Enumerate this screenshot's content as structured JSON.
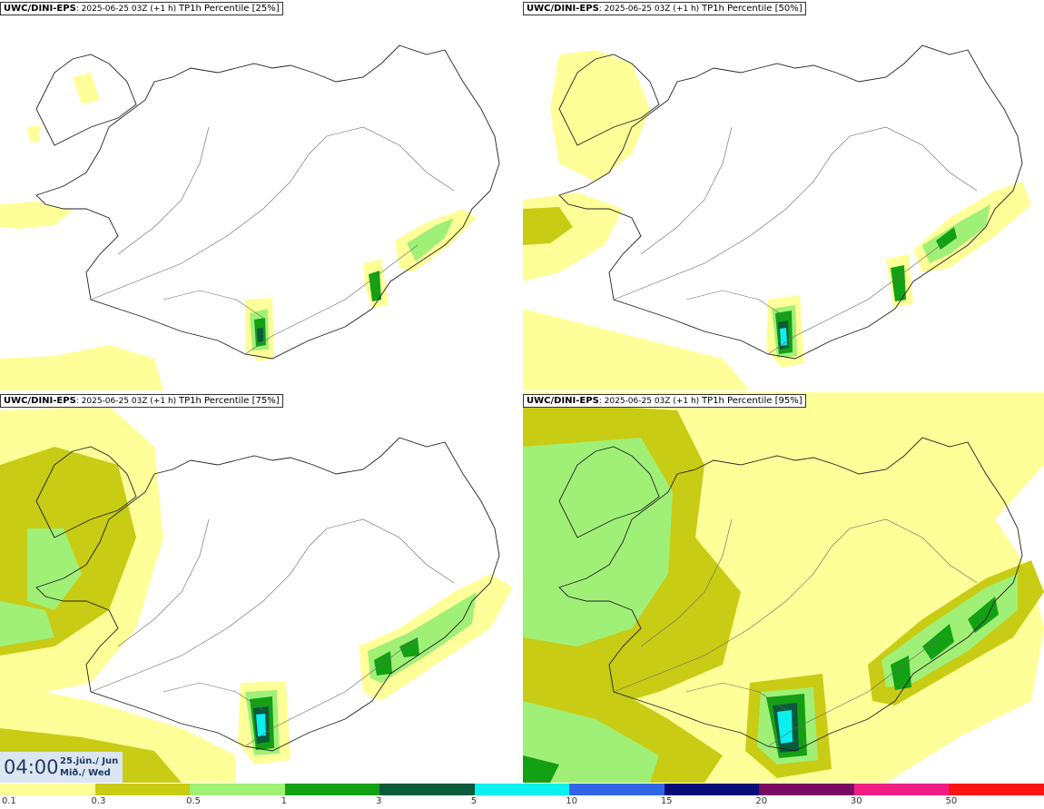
{
  "panels": [
    {
      "model": "UWC/DINI-EPS",
      "run": ": 2025-06-25 03Z (+1 h)",
      "param": "TP1h Percentile [25%]"
    },
    {
      "model": "UWC/DINI-EPS",
      "run": ": 2025-06-25 03Z (+1 h)",
      "param": "TP1h Percentile [50%]"
    },
    {
      "model": "UWC/DINI-EPS",
      "run": ": 2025-06-25 03Z (+1 h)",
      "param": "TP1h Percentile [75%]"
    },
    {
      "model": "UWC/DINI-EPS",
      "run": ": 2025-06-25 03Z (+1 h)",
      "param": "TP1h Percentile [95%]"
    }
  ],
  "timestamp": {
    "time": "04:00",
    "date_line1": "25.jún./ Jun",
    "date_line2": "Mið./ Wed"
  },
  "legend": {
    "labels": [
      "0.1",
      "0.3",
      "0.5",
      "1",
      "3",
      "5",
      "10",
      "15",
      "20",
      "30",
      "50"
    ],
    "colors": [
      "#ffff99",
      "#c8cc14",
      "#a0f078",
      "#14a014",
      "#0a5a3c",
      "#0af0f0",
      "#3264e6",
      "#0a0a78",
      "#780a64",
      "#f01e82",
      "#ff1414"
    ]
  },
  "colors": {
    "coast": "#222222",
    "roads": "#666666"
  }
}
